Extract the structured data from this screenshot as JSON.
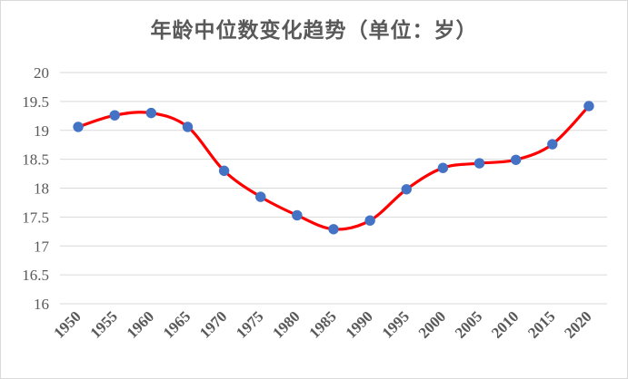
{
  "chart_data": {
    "type": "line",
    "title": "年龄中位数变化趋势（单位：岁）",
    "xlabel": "",
    "ylabel": "",
    "x": [
      "1950",
      "1955",
      "1960",
      "1965",
      "1970",
      "1975",
      "1980",
      "1985",
      "1990",
      "1995",
      "2000",
      "2005",
      "2010",
      "2015",
      "2020"
    ],
    "series": [
      {
        "values": [
          19.06,
          19.26,
          19.3,
          19.06,
          18.3,
          17.85,
          17.53,
          17.29,
          17.44,
          17.98,
          18.35,
          18.43,
          18.49,
          18.76,
          19.42
        ],
        "line_color": "#ff0000",
        "marker_color": "#4472c4"
      }
    ],
    "yticks": [
      "16",
      "16.5",
      "17",
      "17.5",
      "18",
      "18.5",
      "19",
      "19.5",
      "20"
    ],
    "ylim": [
      16,
      20
    ],
    "grid": true,
    "legend": "none"
  }
}
